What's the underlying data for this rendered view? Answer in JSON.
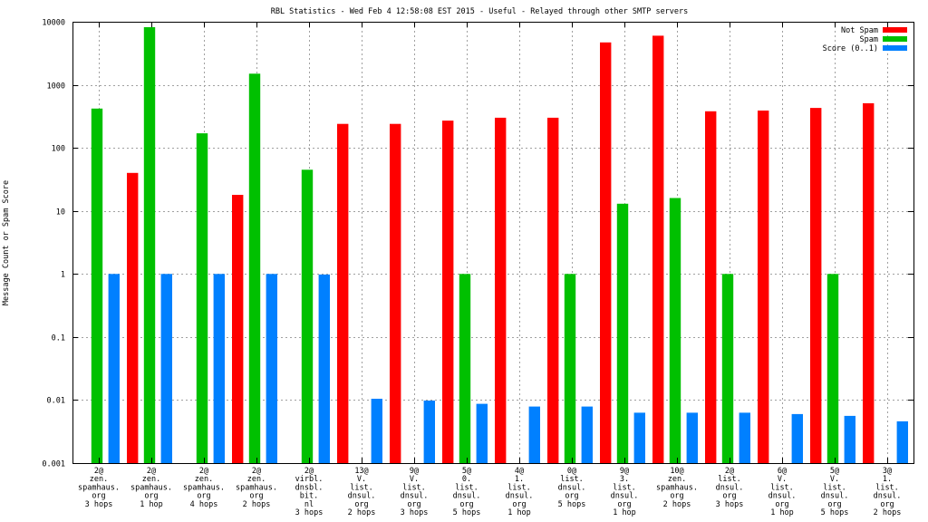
{
  "chart_data": {
    "type": "bar",
    "title": "RBL Statistics - Wed Feb  4 12:58:08 EST 2015 - Useful - Relayed through other SMTP servers",
    "xlabel": "",
    "ylabel": "Message Count or Spam Score",
    "yscale": "log",
    "ylim": [
      0.001,
      10000
    ],
    "yticks": [
      "0.001",
      "0.01",
      "0.1",
      "1",
      "10",
      "100",
      "1000",
      "10000"
    ],
    "grid": true,
    "legend_position": "top-right",
    "categories": [
      [
        "2@",
        "zen.",
        "spamhaus.",
        "org",
        "3 hops"
      ],
      [
        "2@",
        "zen.",
        "spamhaus.",
        "org",
        "1 hop"
      ],
      [
        "2@",
        "zen.",
        "spamhaus.",
        "org",
        "4 hops"
      ],
      [
        "2@",
        "zen.",
        "spamhaus.",
        "org",
        "2 hops"
      ],
      [
        "2@",
        "virbl.",
        "dnsbl.",
        "bit.",
        "nl",
        "3 hops"
      ],
      [
        "13@",
        "V.",
        "list.",
        "dnsul.",
        "org",
        "2 hops"
      ],
      [
        "9@",
        "V.",
        "list.",
        "dnsul.",
        "org",
        "3 hops"
      ],
      [
        "5@",
        "0.",
        "list.",
        "dnsul.",
        "org",
        "5 hops"
      ],
      [
        "4@",
        "1.",
        "list.",
        "dnsul.",
        "org",
        "1 hop"
      ],
      [
        "0@",
        "list.",
        "dnsul.",
        "org",
        "5 hops"
      ],
      [
        "9@",
        "3.",
        "list.",
        "dnsul.",
        "org",
        "1 hop"
      ],
      [
        "10@",
        "zen.",
        "spamhaus.",
        "org",
        "2 hops"
      ],
      [
        "2@",
        "list.",
        "dnsul.",
        "org",
        "3 hops"
      ],
      [
        "6@",
        "V.",
        "list.",
        "dnsul.",
        "org",
        "1 hop"
      ],
      [
        "5@",
        "V.",
        "list.",
        "dnsul.",
        "org",
        "5 hops"
      ],
      [
        "3@",
        "1.",
        "list.",
        "dnsul.",
        "org",
        "2 hops"
      ]
    ],
    "series": [
      {
        "name": "Not Spam",
        "color": "#ff0000",
        "values": [
          null,
          40,
          null,
          18,
          null,
          240,
          240,
          270,
          300,
          300,
          4700,
          6000,
          380,
          390,
          430,
          510
        ]
      },
      {
        "name": "Spam",
        "color": "#00c000",
        "values": [
          420,
          8200,
          170,
          1500,
          45,
          null,
          null,
          1,
          null,
          1,
          13,
          16,
          1,
          null,
          1,
          null
        ]
      },
      {
        "name": "Score (0..1)",
        "color": "#0080ff",
        "values": [
          1,
          1,
          1,
          1,
          0.98,
          0.0105,
          0.0098,
          0.0087,
          0.0079,
          0.0079,
          0.0063,
          0.0063,
          0.0063,
          0.006,
          0.0056,
          0.0046
        ]
      }
    ]
  }
}
